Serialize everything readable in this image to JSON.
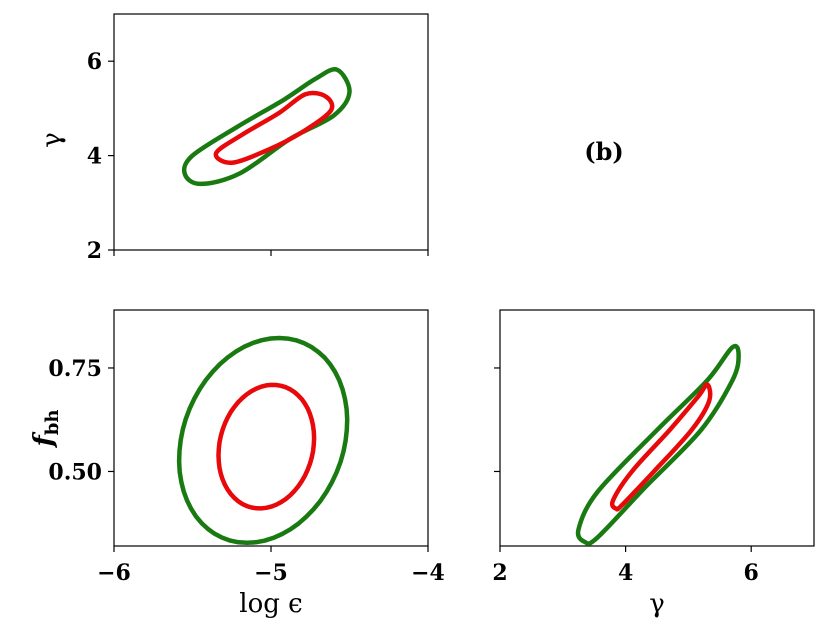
{
  "panel_tag": "(b)",
  "colors": {
    "inner": "#e8090b",
    "outer": "#1a7a12"
  },
  "chart_data": [
    {
      "type": "contour",
      "panel": "gamma-vs-logeps",
      "xlabel": "",
      "ylabel": "γ",
      "xlim": [
        -6,
        -4
      ],
      "ylim": [
        2,
        7
      ],
      "xticks": [
        -6,
        -5,
        -4
      ],
      "yticks": [
        2,
        4,
        6
      ],
      "ytick_labels": [
        "2",
        "4",
        "6"
      ],
      "show_xtick_labels": false,
      "contours": [
        {
          "level": "outer",
          "center": [
            -5.12,
            4.55
          ],
          "points": [
            [
              -5.45,
              3.4
            ],
            [
              -5.55,
              3.62
            ],
            [
              -5.5,
              4.0
            ],
            [
              -5.22,
              4.6
            ],
            [
              -4.92,
              5.18
            ],
            [
              -4.72,
              5.62
            ],
            [
              -4.58,
              5.82
            ],
            [
              -4.5,
              5.35
            ],
            [
              -4.6,
              4.85
            ],
            [
              -4.88,
              4.35
            ],
            [
              -5.2,
              3.62
            ],
            [
              -5.45,
              3.4
            ]
          ]
        },
        {
          "level": "inner",
          "center": [
            -5.0,
            4.6
          ],
          "points": [
            [
              -5.25,
              3.85
            ],
            [
              -5.35,
              4.05
            ],
            [
              -5.18,
              4.45
            ],
            [
              -4.95,
              4.9
            ],
            [
              -4.78,
              5.3
            ],
            [
              -4.65,
              5.25
            ],
            [
              -4.62,
              4.95
            ],
            [
              -4.8,
              4.5
            ],
            [
              -5.02,
              4.12
            ],
            [
              -5.25,
              3.85
            ]
          ]
        }
      ]
    },
    {
      "type": "contour",
      "panel": "fbh-vs-logeps",
      "xlabel": "log ϵ",
      "ylabel": "f_bh",
      "ylabel_main": "f",
      "ylabel_sub": "bh",
      "xlim": [
        -6,
        -4
      ],
      "ylim": [
        0.32,
        0.89
      ],
      "xticks": [
        -6,
        -5,
        -4
      ],
      "xtick_labels": [
        "−6",
        "−5",
        "−4"
      ],
      "yticks": [
        0.5,
        0.75
      ],
      "ytick_labels": [
        "0.50",
        "0.75"
      ],
      "contours": [
        {
          "level": "outer",
          "center": [
            -5.05,
            0.575
          ],
          "rx": 0.52,
          "ry": 0.25,
          "rot": -0.18
        },
        {
          "level": "inner",
          "center": [
            -5.03,
            0.56
          ],
          "rx": 0.3,
          "ry": 0.15,
          "rot": -0.12
        }
      ]
    },
    {
      "type": "contour",
      "panel": "fbh-vs-gamma",
      "xlabel": "γ",
      "ylabel": "",
      "xlim": [
        2,
        7
      ],
      "ylim": [
        0.32,
        0.89
      ],
      "xticks": [
        2,
        4,
        6
      ],
      "xtick_labels": [
        "2",
        "4",
        "6"
      ],
      "yticks": [
        0.5,
        0.75
      ],
      "show_ytick_labels": false,
      "contours": [
        {
          "level": "outer",
          "points": [
            [
              3.35,
              0.33
            ],
            [
              3.25,
              0.36
            ],
            [
              3.55,
              0.45
            ],
            [
              4.5,
              0.6
            ],
            [
              5.3,
              0.72
            ],
            [
              5.7,
              0.8
            ],
            [
              5.8,
              0.78
            ],
            [
              5.7,
              0.72
            ],
            [
              5.2,
              0.6
            ],
            [
              4.3,
              0.46
            ],
            [
              3.55,
              0.34
            ],
            [
              3.35,
              0.33
            ]
          ]
        },
        {
          "level": "inner",
          "points": [
            [
              3.85,
              0.41
            ],
            [
              3.8,
              0.43
            ],
            [
              4.1,
              0.5
            ],
            [
              4.7,
              0.6
            ],
            [
              5.15,
              0.68
            ],
            [
              5.3,
              0.71
            ],
            [
              5.33,
              0.67
            ],
            [
              5.05,
              0.6
            ],
            [
              4.45,
              0.5
            ],
            [
              3.95,
              0.42
            ],
            [
              3.85,
              0.41
            ]
          ]
        }
      ]
    }
  ]
}
